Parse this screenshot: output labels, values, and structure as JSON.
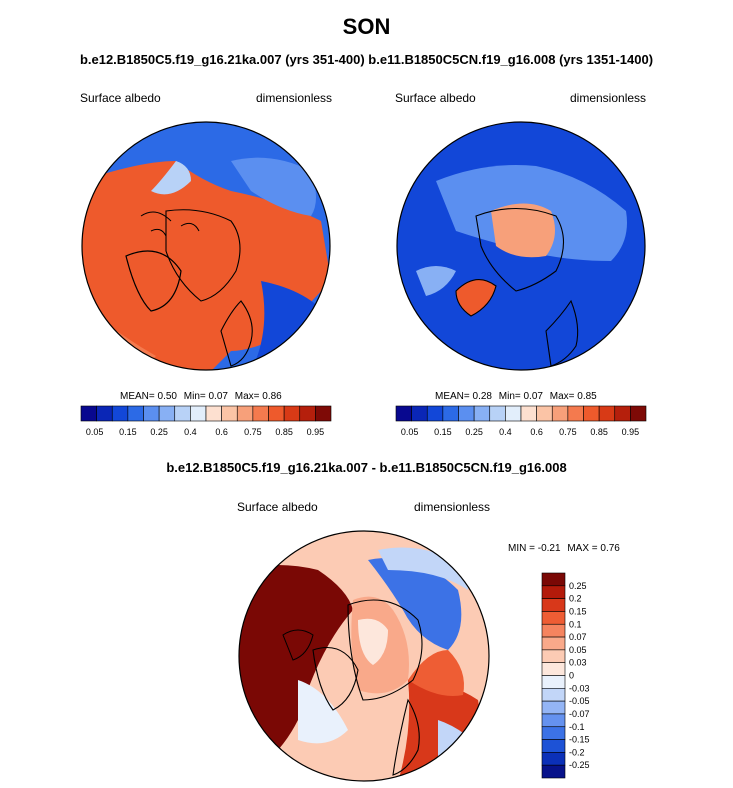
{
  "season": "SON",
  "subtitle": "b.e12.B1850C5.f19_g16.21ka.007 (yrs 351-400) b.e11.B1850C5CN.f19_g16.008 (yrs 1351-1400)",
  "colors": {
    "seq": [
      "#08088f",
      "#0a26b6",
      "#1247d8",
      "#2c6ae6",
      "#5b8ff0",
      "#88b0f4",
      "#b8d2f7",
      "#e2eefb",
      "#fde0d0",
      "#fbc4a6",
      "#f7a07a",
      "#f47a4e",
      "#ee5a2c",
      "#d83a16",
      "#b51f0c",
      "#7e0a06"
    ],
    "div": [
      "#07128a",
      "#0b30b8",
      "#1d52d6",
      "#3c72e6",
      "#6592ef",
      "#94b5f5",
      "#c2d6f8",
      "#e9f1fc",
      "#fde7dc",
      "#fccbb4",
      "#f9a98a",
      "#f5845f",
      "#ee5d34",
      "#d8381a",
      "#b31a0a",
      "#7a0805"
    ],
    "coast": "#000000"
  },
  "chart_data": [
    {
      "id": "left",
      "type": "heatmap",
      "projection": "north-polar-stereographic",
      "left_label": "Surface albedo",
      "right_label": "dimensionless",
      "mean_label": "MEAN=",
      "mean": "0.50",
      "min_label": "Min=",
      "min": "0.07",
      "max_label": "Max=",
      "max": "0.86",
      "colorbar_ticks": [
        "0.05",
        "0.15",
        "0.25",
        "0.4",
        "0.6",
        "0.75",
        "0.85",
        "0.95"
      ],
      "dominant": "ice-sheet-high-albedo"
    },
    {
      "id": "right",
      "type": "heatmap",
      "projection": "north-polar-stereographic",
      "left_label": "Surface albedo",
      "right_label": "dimensionless",
      "mean_label": "MEAN=",
      "mean": "0.28",
      "min_label": "Min=",
      "min": "0.07",
      "max_label": "Max=",
      "max": "0.85",
      "colorbar_ticks": [
        "0.05",
        "0.15",
        "0.25",
        "0.4",
        "0.6",
        "0.75",
        "0.85",
        "0.95"
      ],
      "dominant": "ocean-low-albedo"
    },
    {
      "id": "diff",
      "type": "heatmap",
      "projection": "north-polar-stereographic",
      "title": "b.e12.B1850C5.f19_g16.21ka.007 - b.e11.B1850C5CN.f19_g16.008",
      "left_label": "Surface albedo",
      "right_label": "dimensionless",
      "min_label": "MIN =",
      "min": "-0.21",
      "max_label": "MAX =",
      "max": "0.76",
      "colorbar_ticks": [
        "0.25",
        "0.2",
        "0.15",
        "0.1",
        "0.07",
        "0.05",
        "0.03",
        "0",
        "-0.03",
        "-0.05",
        "-0.07",
        "-0.1",
        "-0.15",
        "-0.2",
        "-0.25"
      ]
    }
  ]
}
